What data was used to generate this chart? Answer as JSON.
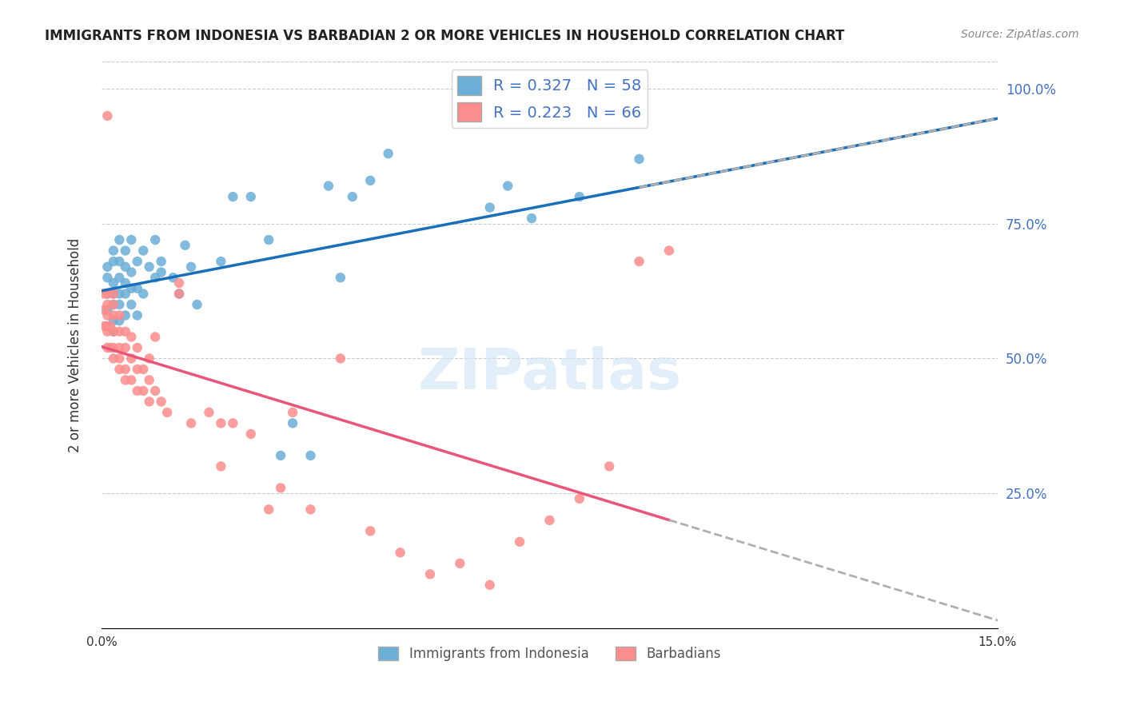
{
  "title": "IMMIGRANTS FROM INDONESIA VS BARBADIAN 2 OR MORE VEHICLES IN HOUSEHOLD CORRELATION CHART",
  "source": "Source: ZipAtlas.com",
  "xlabel_bottom": "",
  "ylabel": "2 or more Vehicles in Household",
  "xmin": 0.0,
  "xmax": 0.15,
  "ymin": 0.0,
  "ymax": 1.05,
  "x_tick_labels": [
    "0.0%",
    "15.0%"
  ],
  "y_tick_labels_right": [
    "25.0%",
    "50.0%",
    "75.0%",
    "100.0%"
  ],
  "legend_label_blue": "R = 0.327   N = 58",
  "legend_label_pink": "R = 0.223   N = 66",
  "blue_color": "#6baed6",
  "pink_color": "#fc8d8d",
  "trendline_blue_color": "#1a6fbb",
  "trendline_pink_color": "#e8567a",
  "trendline_dashed_color": "#b0b0b0",
  "watermark": "ZIPatlas",
  "legend_label_bottom_blue": "Immigrants from Indonesia",
  "legend_label_bottom_pink": "Barbadians",
  "blue_scatter_x": [
    0.001,
    0.001,
    0.001,
    0.001,
    0.002,
    0.002,
    0.002,
    0.002,
    0.002,
    0.002,
    0.002,
    0.003,
    0.003,
    0.003,
    0.003,
    0.003,
    0.003,
    0.004,
    0.004,
    0.004,
    0.004,
    0.004,
    0.005,
    0.005,
    0.005,
    0.005,
    0.006,
    0.006,
    0.006,
    0.007,
    0.007,
    0.008,
    0.009,
    0.009,
    0.01,
    0.01,
    0.012,
    0.013,
    0.014,
    0.015,
    0.016,
    0.02,
    0.022,
    0.025,
    0.028,
    0.03,
    0.032,
    0.035,
    0.038,
    0.04,
    0.042,
    0.045,
    0.048,
    0.065,
    0.068,
    0.072,
    0.08,
    0.09
  ],
  "blue_scatter_y": [
    0.59,
    0.62,
    0.65,
    0.67,
    0.55,
    0.57,
    0.6,
    0.62,
    0.64,
    0.68,
    0.7,
    0.57,
    0.6,
    0.62,
    0.65,
    0.68,
    0.72,
    0.58,
    0.62,
    0.64,
    0.67,
    0.7,
    0.6,
    0.63,
    0.66,
    0.72,
    0.58,
    0.63,
    0.68,
    0.62,
    0.7,
    0.67,
    0.65,
    0.72,
    0.66,
    0.68,
    0.65,
    0.62,
    0.71,
    0.67,
    0.6,
    0.68,
    0.8,
    0.8,
    0.72,
    0.32,
    0.38,
    0.32,
    0.82,
    0.65,
    0.8,
    0.83,
    0.88,
    0.78,
    0.82,
    0.76,
    0.8,
    0.87
  ],
  "pink_scatter_x": [
    0.0005,
    0.0005,
    0.0005,
    0.0008,
    0.001,
    0.001,
    0.001,
    0.001,
    0.001,
    0.001,
    0.0015,
    0.0015,
    0.002,
    0.002,
    0.002,
    0.002,
    0.002,
    0.002,
    0.003,
    0.003,
    0.003,
    0.003,
    0.003,
    0.004,
    0.004,
    0.004,
    0.004,
    0.005,
    0.005,
    0.005,
    0.006,
    0.006,
    0.006,
    0.007,
    0.007,
    0.008,
    0.008,
    0.008,
    0.009,
    0.009,
    0.01,
    0.011,
    0.013,
    0.013,
    0.015,
    0.018,
    0.02,
    0.02,
    0.022,
    0.025,
    0.028,
    0.03,
    0.032,
    0.035,
    0.04,
    0.045,
    0.05,
    0.055,
    0.06,
    0.065,
    0.07,
    0.075,
    0.08,
    0.085,
    0.09,
    0.095
  ],
  "pink_scatter_y": [
    0.56,
    0.59,
    0.62,
    0.56,
    0.52,
    0.55,
    0.58,
    0.6,
    0.62,
    0.95,
    0.52,
    0.56,
    0.5,
    0.52,
    0.55,
    0.58,
    0.6,
    0.62,
    0.48,
    0.5,
    0.52,
    0.55,
    0.58,
    0.46,
    0.48,
    0.52,
    0.55,
    0.46,
    0.5,
    0.54,
    0.44,
    0.48,
    0.52,
    0.44,
    0.48,
    0.42,
    0.46,
    0.5,
    0.44,
    0.54,
    0.42,
    0.4,
    0.62,
    0.64,
    0.38,
    0.4,
    0.3,
    0.38,
    0.38,
    0.36,
    0.22,
    0.26,
    0.4,
    0.22,
    0.5,
    0.18,
    0.14,
    0.1,
    0.12,
    0.08,
    0.16,
    0.2,
    0.24,
    0.3,
    0.68,
    0.7
  ]
}
